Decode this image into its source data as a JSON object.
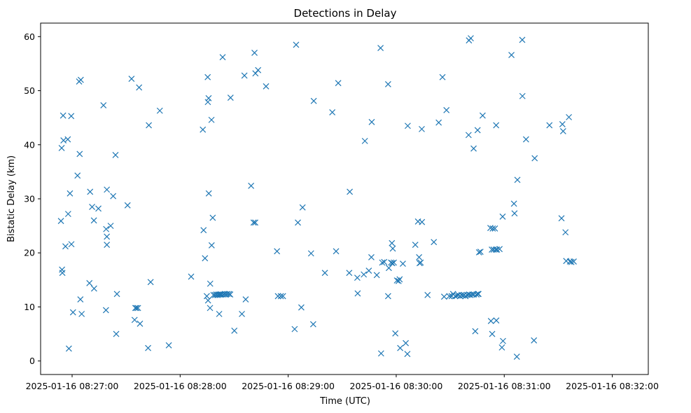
{
  "chart_data": {
    "type": "scatter",
    "title": "Detections in Delay",
    "xlabel": "Time (UTC)",
    "ylabel": "Bistatic Delay (km)",
    "x_unit": "seconds after 2025-01-16 08:27:00",
    "xlim": [
      -17.5,
      320
    ],
    "ylim": [
      -2.5,
      62.5
    ],
    "grid": false,
    "marker": "x",
    "color": "#1f77b4",
    "xticks": [
      {
        "value": 0,
        "label": "2025-01-16 08:27:00"
      },
      {
        "value": 60,
        "label": "2025-01-16 08:28:00"
      },
      {
        "value": 120,
        "label": "2025-01-16 08:29:00"
      },
      {
        "value": 180,
        "label": "2025-01-16 08:30:00"
      },
      {
        "value": 240,
        "label": "2025-01-16 08:31:00"
      },
      {
        "value": 300,
        "label": "2025-01-16 08:32:00"
      }
    ],
    "yticks": [
      {
        "value": 0,
        "label": "0"
      },
      {
        "value": 10,
        "label": "10"
      },
      {
        "value": 20,
        "label": "20"
      },
      {
        "value": 30,
        "label": "30"
      },
      {
        "value": 40,
        "label": "40"
      },
      {
        "value": 50,
        "label": "50"
      },
      {
        "value": 60,
        "label": "60"
      }
    ],
    "points": [
      [
        -6.2,
        25.9
      ],
      [
        -5.8,
        39.4
      ],
      [
        -5.6,
        16.9
      ],
      [
        -5.4,
        16.3
      ],
      [
        -5.0,
        45.4
      ],
      [
        -4.8,
        40.8
      ],
      [
        -3.7,
        21.2
      ],
      [
        -2.4,
        41.0
      ],
      [
        -2.2,
        27.2
      ],
      [
        -1.8,
        2.3
      ],
      [
        -1.2,
        31.0
      ],
      [
        -0.5,
        45.3
      ],
      [
        -0.4,
        21.6
      ],
      [
        0.5,
        9.0
      ],
      [
        3.0,
        34.3
      ],
      [
        3.9,
        51.7
      ],
      [
        4.2,
        38.3
      ],
      [
        4.8,
        52.0
      ],
      [
        4.6,
        11.4
      ],
      [
        5.3,
        8.7
      ],
      [
        9.6,
        14.4
      ],
      [
        10.0,
        31.3
      ],
      [
        11.1,
        28.5
      ],
      [
        12.1,
        26.0
      ],
      [
        12.2,
        13.4
      ],
      [
        14.6,
        28.2
      ],
      [
        17.4,
        47.3
      ],
      [
        18.9,
        24.4
      ],
      [
        18.8,
        9.4
      ],
      [
        19.3,
        31.7
      ],
      [
        19.3,
        23.0
      ],
      [
        19.3,
        21.5
      ],
      [
        21.4,
        25.0
      ],
      [
        22.8,
        30.5
      ],
      [
        24.1,
        38.1
      ],
      [
        24.5,
        5.0
      ],
      [
        24.9,
        12.4
      ],
      [
        30.8,
        28.8
      ],
      [
        33.0,
        52.2
      ],
      [
        34.7,
        7.6
      ],
      [
        35.1,
        9.8
      ],
      [
        35.8,
        9.8
      ],
      [
        36.6,
        9.8
      ],
      [
        37.2,
        50.6
      ],
      [
        37.7,
        6.9
      ],
      [
        42.6,
        43.6
      ],
      [
        42.2,
        2.4
      ],
      [
        43.6,
        14.6
      ],
      [
        48.7,
        46.3
      ],
      [
        53.7,
        2.9
      ],
      [
        66.1,
        15.6
      ],
      [
        72.6,
        42.8
      ],
      [
        73.0,
        24.2
      ],
      [
        73.8,
        19.0
      ],
      [
        74.8,
        12.0
      ],
      [
        75.5,
        11.2
      ],
      [
        75.3,
        52.5
      ],
      [
        75.4,
        47.9
      ],
      [
        75.8,
        48.6
      ],
      [
        75.9,
        31.0
      ],
      [
        76.7,
        14.3
      ],
      [
        76.6,
        9.8
      ],
      [
        77.5,
        21.4
      ],
      [
        77.4,
        44.6
      ],
      [
        78.1,
        26.5
      ],
      [
        78.5,
        12.2
      ],
      [
        79.4,
        12.2
      ],
      [
        80.1,
        12.3
      ],
      [
        80.7,
        12.2
      ],
      [
        81.3,
        12.3
      ],
      [
        81.7,
        8.7
      ],
      [
        82.0,
        12.3
      ],
      [
        82.5,
        12.3
      ],
      [
        83.0,
        12.3
      ],
      [
        83.6,
        56.2
      ],
      [
        84.0,
        12.3
      ],
      [
        84.8,
        12.4
      ],
      [
        85.5,
        12.3
      ],
      [
        86.2,
        12.4
      ],
      [
        87.2,
        12.4
      ],
      [
        87.8,
        12.3
      ],
      [
        88.0,
        48.7
      ],
      [
        90.1,
        5.6
      ],
      [
        94.3,
        8.7
      ],
      [
        95.7,
        52.8
      ],
      [
        96.4,
        11.4
      ],
      [
        99.4,
        32.4
      ],
      [
        100.8,
        25.6
      ],
      [
        101.3,
        57.0
      ],
      [
        101.7,
        25.6
      ],
      [
        101.8,
        53.2
      ],
      [
        103.3,
        53.8
      ],
      [
        107.7,
        50.8
      ],
      [
        113.8,
        20.3
      ],
      [
        114.3,
        12.0
      ],
      [
        115.9,
        12.0
      ],
      [
        117.1,
        12.0
      ],
      [
        123.6,
        5.9
      ],
      [
        124.4,
        58.5
      ],
      [
        125.4,
        25.6
      ],
      [
        127.3,
        9.9
      ],
      [
        128.0,
        28.4
      ],
      [
        132.7,
        19.9
      ],
      [
        134.2,
        48.1
      ],
      [
        133.9,
        6.8
      ],
      [
        140.4,
        16.3
      ],
      [
        144.5,
        46.0
      ],
      [
        146.6,
        20.3
      ],
      [
        147.8,
        51.4
      ],
      [
        154.2,
        31.3
      ],
      [
        153.9,
        16.3
      ],
      [
        158.4,
        15.4
      ],
      [
        158.6,
        12.5
      ],
      [
        162.0,
        16.0
      ],
      [
        162.6,
        40.7
      ],
      [
        164.8,
        16.7
      ],
      [
        166.4,
        44.2
      ],
      [
        166.2,
        19.2
      ],
      [
        169.2,
        15.9
      ],
      [
        171.3,
        57.9
      ],
      [
        171.6,
        1.4
      ],
      [
        172.2,
        18.2
      ],
      [
        173.3,
        18.3
      ],
      [
        175.5,
        51.2
      ],
      [
        175.5,
        12.0
      ],
      [
        175.9,
        17.2
      ],
      [
        177.1,
        18.2
      ],
      [
        177.8,
        18.1
      ],
      [
        177.6,
        21.8
      ],
      [
        178.1,
        20.8
      ],
      [
        178.7,
        18.2
      ],
      [
        179.5,
        5.1
      ],
      [
        180.4,
        14.9
      ],
      [
        181.3,
        14.8
      ],
      [
        181.9,
        15.1
      ],
      [
        182.2,
        2.4
      ],
      [
        183.7,
        18.0
      ],
      [
        185.3,
        3.3
      ],
      [
        186.4,
        43.5
      ],
      [
        186.2,
        1.3
      ],
      [
        190.6,
        21.5
      ],
      [
        192.1,
        25.8
      ],
      [
        192.7,
        19.2
      ],
      [
        193.0,
        18.1
      ],
      [
        193.6,
        18.2
      ],
      [
        194.2,
        42.9
      ],
      [
        194.3,
        25.7
      ],
      [
        197.4,
        12.2
      ],
      [
        200.9,
        22.0
      ],
      [
        203.6,
        44.1
      ],
      [
        205.7,
        52.5
      ],
      [
        206.6,
        11.9
      ],
      [
        207.9,
        46.4
      ],
      [
        209.5,
        12.0
      ],
      [
        210.8,
        12.0
      ],
      [
        211.6,
        12.4
      ],
      [
        212.8,
        12.0
      ],
      [
        213.7,
        12.1
      ],
      [
        214.5,
        12.2
      ],
      [
        215.5,
        12.0
      ],
      [
        216.3,
        12.2
      ],
      [
        217.1,
        12.1
      ],
      [
        217.7,
        12.2
      ],
      [
        218.5,
        12.0
      ],
      [
        219.5,
        12.2
      ],
      [
        220.4,
        12.3
      ],
      [
        220.4,
        59.3
      ],
      [
        220.2,
        41.8
      ],
      [
        221.2,
        12.2
      ],
      [
        221.4,
        59.7
      ],
      [
        222.3,
        12.3
      ],
      [
        223.0,
        39.3
      ],
      [
        223.1,
        12.3
      ],
      [
        223.9,
        5.5
      ],
      [
        224.6,
        12.3
      ],
      [
        225.2,
        42.7
      ],
      [
        225.4,
        12.4
      ],
      [
        225.7,
        12.4
      ],
      [
        226.0,
        20.1
      ],
      [
        226.8,
        20.2
      ],
      [
        228.0,
        45.4
      ],
      [
        232.3,
        24.6
      ],
      [
        232.6,
        7.4
      ],
      [
        233.1,
        20.6
      ],
      [
        233.3,
        5.0
      ],
      [
        233.6,
        24.5
      ],
      [
        234.1,
        20.6
      ],
      [
        234.8,
        24.5
      ],
      [
        235.3,
        20.6
      ],
      [
        235.5,
        43.6
      ],
      [
        235.6,
        7.5
      ],
      [
        236.0,
        20.6
      ],
      [
        237.4,
        20.7
      ],
      [
        238.7,
        2.5
      ],
      [
        239.1,
        26.7
      ],
      [
        239.3,
        3.7
      ],
      [
        244.0,
        56.6
      ],
      [
        245.4,
        29.1
      ],
      [
        245.7,
        27.3
      ],
      [
        247.0,
        0.8
      ],
      [
        247.3,
        33.5
      ],
      [
        250.0,
        59.4
      ],
      [
        250.1,
        49.0
      ],
      [
        252.1,
        41.0
      ],
      [
        256.5,
        3.8
      ],
      [
        256.9,
        37.5
      ],
      [
        265.1,
        43.6
      ],
      [
        271.8,
        26.4
      ],
      [
        272.3,
        43.8
      ],
      [
        272.7,
        42.5
      ],
      [
        274.0,
        23.8
      ],
      [
        274.4,
        18.5
      ],
      [
        275.9,
        45.1
      ],
      [
        276.5,
        18.4
      ],
      [
        277.3,
        18.3
      ],
      [
        278.6,
        18.4
      ]
    ]
  }
}
